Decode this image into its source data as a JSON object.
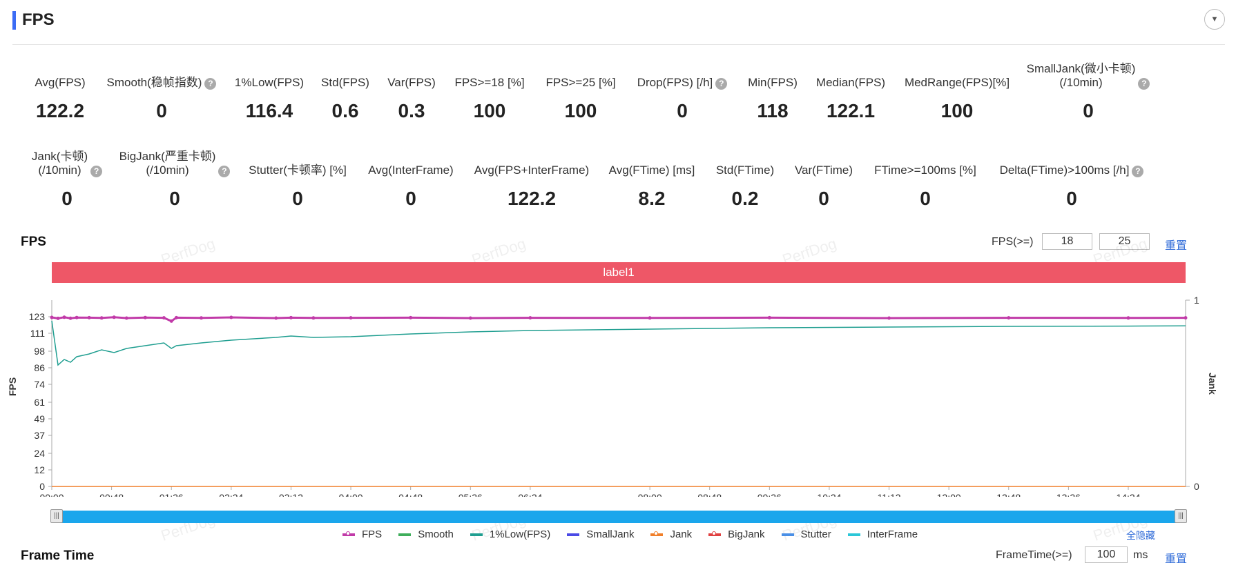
{
  "section": {
    "title": "FPS",
    "collapse_icon": "chevron-down-icon"
  },
  "metrics_row1": [
    {
      "label": "Avg(FPS)",
      "value": "122.2",
      "help": false
    },
    {
      "label": "Smooth(稳帧指数)",
      "value": "0",
      "help": true
    },
    {
      "label": "1%Low(FPS)",
      "value": "116.4",
      "help": false
    },
    {
      "label": "Std(FPS)",
      "value": "0.6",
      "help": false
    },
    {
      "label": "Var(FPS)",
      "value": "0.3",
      "help": false
    },
    {
      "label": "FPS>=18 [%]",
      "value": "100",
      "help": false
    },
    {
      "label": "FPS>=25 [%]",
      "value": "100",
      "help": false
    },
    {
      "label": "Drop(FPS) [/h]",
      "value": "0",
      "help": true
    },
    {
      "label": "Min(FPS)",
      "value": "118",
      "help": false
    },
    {
      "label": "Median(FPS)",
      "value": "122.1",
      "help": false
    },
    {
      "label": "MedRange(FPS)[%]",
      "value": "100",
      "help": false
    },
    {
      "label": "SmallJank(微小卡顿)\n(/10min)",
      "value": "0",
      "help": true
    }
  ],
  "metrics_row2": [
    {
      "label": "Jank(卡顿)\n(/10min)",
      "value": "0",
      "help": true
    },
    {
      "label": "BigJank(严重卡顿)\n(/10min)",
      "value": "0",
      "help": true
    },
    {
      "label": "Stutter(卡顿率) [%]",
      "value": "0",
      "help": false
    },
    {
      "label": "Avg(InterFrame)",
      "value": "0",
      "help": false
    },
    {
      "label": "Avg(FPS+InterFrame)",
      "value": "122.2",
      "help": false
    },
    {
      "label": "Avg(FTime) [ms]",
      "value": "8.2",
      "help": false
    },
    {
      "label": "Std(FTime)",
      "value": "0.2",
      "help": false
    },
    {
      "label": "Var(FTime)",
      "value": "0",
      "help": false
    },
    {
      "label": "FTime>=100ms [%]",
      "value": "0",
      "help": false
    },
    {
      "label": "Delta(FTime)>100ms [/h]",
      "value": "0",
      "help": true
    }
  ],
  "fps_chart_header": {
    "title": "FPS",
    "threshold_label": "FPS(>=)",
    "threshold_1": "18",
    "threshold_2": "25",
    "reset": "重置"
  },
  "watermark": "PerfDog",
  "label_band": "label1",
  "chart_data": {
    "type": "line",
    "ylabel_left": "FPS",
    "ylabel_right": "Jank",
    "y_ticks": [
      "123",
      "111",
      "98",
      "86",
      "74",
      "61",
      "49",
      "37",
      "24",
      "12",
      "0"
    ],
    "y_right_ticks": [
      "1",
      "0"
    ],
    "ylim": [
      0,
      135
    ],
    "y_right_lim": [
      0,
      1
    ],
    "x_ticks": [
      "00:00",
      "00:48",
      "01:36",
      "02:24",
      "03:12",
      "04:00",
      "04:48",
      "05:36",
      "06:24",
      "08:00",
      "08:48",
      "09:36",
      "10:24",
      "11:12",
      "12:00",
      "12:48",
      "13:36",
      "14:24"
    ],
    "x": [
      "00:00",
      "00:05",
      "00:10",
      "00:15",
      "00:20",
      "00:30",
      "00:40",
      "00:50",
      "01:00",
      "01:15",
      "01:30",
      "01:36",
      "01:40",
      "02:00",
      "02:24",
      "03:00",
      "03:12",
      "03:30",
      "04:00",
      "04:48",
      "05:36",
      "06:24",
      "08:00",
      "09:36",
      "11:12",
      "12:48",
      "14:24",
      "15:10"
    ],
    "series": [
      {
        "name": "FPS",
        "color": "#c13aa8",
        "values": [
          122.5,
          121.8,
          122.6,
          121.9,
          122.4,
          122.3,
          122.1,
          122.6,
          122.0,
          122.4,
          122.2,
          119.8,
          122.3,
          122.1,
          122.5,
          122.0,
          122.3,
          122.1,
          122.2,
          122.3,
          122.0,
          122.2,
          122.1,
          122.3,
          122.0,
          122.2,
          122.1,
          122.2
        ]
      },
      {
        "name": "1%Low(FPS)",
        "color": "#1f9e90",
        "values": [
          120.0,
          88.0,
          92.0,
          90.0,
          94.0,
          96.0,
          99.0,
          97.0,
          100.0,
          102.0,
          104.0,
          100.0,
          102.0,
          104.0,
          106.0,
          108.0,
          109.0,
          108.0,
          108.5,
          110.5,
          112.0,
          113.0,
          114.0,
          115.0,
          115.5,
          116.0,
          116.2,
          116.4
        ]
      },
      {
        "name": "Jank",
        "color": "#f07f2a",
        "values": [
          0,
          0,
          0,
          0,
          0,
          0,
          0,
          0,
          0,
          0,
          0,
          0,
          0,
          0,
          0,
          0,
          0,
          0,
          0,
          0,
          0,
          0,
          0,
          0,
          0,
          0,
          0,
          0
        ]
      }
    ],
    "legend": [
      {
        "name": "FPS",
        "color": "#c13aa8",
        "marker": true
      },
      {
        "name": "Smooth",
        "color": "#3fae5b",
        "marker": false
      },
      {
        "name": "1%Low(FPS)",
        "color": "#1f9e90",
        "marker": false
      },
      {
        "name": "SmallJank",
        "color": "#4b4ae6",
        "marker": false
      },
      {
        "name": "Jank",
        "color": "#f07f2a",
        "marker": true
      },
      {
        "name": "BigJank",
        "color": "#e04040",
        "marker": true
      },
      {
        "name": "Stutter",
        "color": "#4a8fe6",
        "marker": false
      },
      {
        "name": "InterFrame",
        "color": "#2cc7d8",
        "marker": false
      }
    ],
    "legend_position": "bottom",
    "grid": false
  },
  "hide_all": "全隐藏",
  "frametime_header": {
    "title": "Frame Time",
    "threshold_label": "FrameTime(>=)",
    "threshold": "100",
    "unit": "ms",
    "reset": "重置"
  }
}
